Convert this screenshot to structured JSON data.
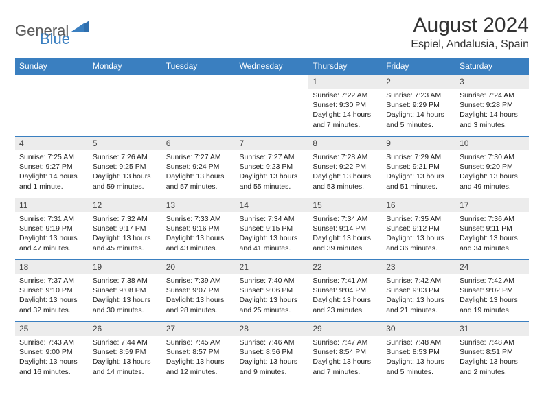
{
  "logo": {
    "general": "General",
    "blue": "Blue"
  },
  "title": "August 2024",
  "location": "Espiel, Andalusia, Spain",
  "weekdays": [
    "Sunday",
    "Monday",
    "Tuesday",
    "Wednesday",
    "Thursday",
    "Friday",
    "Saturday"
  ],
  "colors": {
    "header_bg": "#3a7fc0",
    "header_text": "#ffffff",
    "daynum_bg": "#ececec",
    "border": "#3a7fc0",
    "logo_gray": "#5b5b5b",
    "logo_blue": "#3a7fc0"
  },
  "weeks": [
    [
      {
        "day": "",
        "sunrise": "",
        "sunset": "",
        "daylight": ""
      },
      {
        "day": "",
        "sunrise": "",
        "sunset": "",
        "daylight": ""
      },
      {
        "day": "",
        "sunrise": "",
        "sunset": "",
        "daylight": ""
      },
      {
        "day": "",
        "sunrise": "",
        "sunset": "",
        "daylight": ""
      },
      {
        "day": "1",
        "sunrise": "Sunrise: 7:22 AM",
        "sunset": "Sunset: 9:30 PM",
        "daylight": "Daylight: 14 hours and 7 minutes."
      },
      {
        "day": "2",
        "sunrise": "Sunrise: 7:23 AM",
        "sunset": "Sunset: 9:29 PM",
        "daylight": "Daylight: 14 hours and 5 minutes."
      },
      {
        "day": "3",
        "sunrise": "Sunrise: 7:24 AM",
        "sunset": "Sunset: 9:28 PM",
        "daylight": "Daylight: 14 hours and 3 minutes."
      }
    ],
    [
      {
        "day": "4",
        "sunrise": "Sunrise: 7:25 AM",
        "sunset": "Sunset: 9:27 PM",
        "daylight": "Daylight: 14 hours and 1 minute."
      },
      {
        "day": "5",
        "sunrise": "Sunrise: 7:26 AM",
        "sunset": "Sunset: 9:25 PM",
        "daylight": "Daylight: 13 hours and 59 minutes."
      },
      {
        "day": "6",
        "sunrise": "Sunrise: 7:27 AM",
        "sunset": "Sunset: 9:24 PM",
        "daylight": "Daylight: 13 hours and 57 minutes."
      },
      {
        "day": "7",
        "sunrise": "Sunrise: 7:27 AM",
        "sunset": "Sunset: 9:23 PM",
        "daylight": "Daylight: 13 hours and 55 minutes."
      },
      {
        "day": "8",
        "sunrise": "Sunrise: 7:28 AM",
        "sunset": "Sunset: 9:22 PM",
        "daylight": "Daylight: 13 hours and 53 minutes."
      },
      {
        "day": "9",
        "sunrise": "Sunrise: 7:29 AM",
        "sunset": "Sunset: 9:21 PM",
        "daylight": "Daylight: 13 hours and 51 minutes."
      },
      {
        "day": "10",
        "sunrise": "Sunrise: 7:30 AM",
        "sunset": "Sunset: 9:20 PM",
        "daylight": "Daylight: 13 hours and 49 minutes."
      }
    ],
    [
      {
        "day": "11",
        "sunrise": "Sunrise: 7:31 AM",
        "sunset": "Sunset: 9:19 PM",
        "daylight": "Daylight: 13 hours and 47 minutes."
      },
      {
        "day": "12",
        "sunrise": "Sunrise: 7:32 AM",
        "sunset": "Sunset: 9:17 PM",
        "daylight": "Daylight: 13 hours and 45 minutes."
      },
      {
        "day": "13",
        "sunrise": "Sunrise: 7:33 AM",
        "sunset": "Sunset: 9:16 PM",
        "daylight": "Daylight: 13 hours and 43 minutes."
      },
      {
        "day": "14",
        "sunrise": "Sunrise: 7:34 AM",
        "sunset": "Sunset: 9:15 PM",
        "daylight": "Daylight: 13 hours and 41 minutes."
      },
      {
        "day": "15",
        "sunrise": "Sunrise: 7:34 AM",
        "sunset": "Sunset: 9:14 PM",
        "daylight": "Daylight: 13 hours and 39 minutes."
      },
      {
        "day": "16",
        "sunrise": "Sunrise: 7:35 AM",
        "sunset": "Sunset: 9:12 PM",
        "daylight": "Daylight: 13 hours and 36 minutes."
      },
      {
        "day": "17",
        "sunrise": "Sunrise: 7:36 AM",
        "sunset": "Sunset: 9:11 PM",
        "daylight": "Daylight: 13 hours and 34 minutes."
      }
    ],
    [
      {
        "day": "18",
        "sunrise": "Sunrise: 7:37 AM",
        "sunset": "Sunset: 9:10 PM",
        "daylight": "Daylight: 13 hours and 32 minutes."
      },
      {
        "day": "19",
        "sunrise": "Sunrise: 7:38 AM",
        "sunset": "Sunset: 9:08 PM",
        "daylight": "Daylight: 13 hours and 30 minutes."
      },
      {
        "day": "20",
        "sunrise": "Sunrise: 7:39 AM",
        "sunset": "Sunset: 9:07 PM",
        "daylight": "Daylight: 13 hours and 28 minutes."
      },
      {
        "day": "21",
        "sunrise": "Sunrise: 7:40 AM",
        "sunset": "Sunset: 9:06 PM",
        "daylight": "Daylight: 13 hours and 25 minutes."
      },
      {
        "day": "22",
        "sunrise": "Sunrise: 7:41 AM",
        "sunset": "Sunset: 9:04 PM",
        "daylight": "Daylight: 13 hours and 23 minutes."
      },
      {
        "day": "23",
        "sunrise": "Sunrise: 7:42 AM",
        "sunset": "Sunset: 9:03 PM",
        "daylight": "Daylight: 13 hours and 21 minutes."
      },
      {
        "day": "24",
        "sunrise": "Sunrise: 7:42 AM",
        "sunset": "Sunset: 9:02 PM",
        "daylight": "Daylight: 13 hours and 19 minutes."
      }
    ],
    [
      {
        "day": "25",
        "sunrise": "Sunrise: 7:43 AM",
        "sunset": "Sunset: 9:00 PM",
        "daylight": "Daylight: 13 hours and 16 minutes."
      },
      {
        "day": "26",
        "sunrise": "Sunrise: 7:44 AM",
        "sunset": "Sunset: 8:59 PM",
        "daylight": "Daylight: 13 hours and 14 minutes."
      },
      {
        "day": "27",
        "sunrise": "Sunrise: 7:45 AM",
        "sunset": "Sunset: 8:57 PM",
        "daylight": "Daylight: 13 hours and 12 minutes."
      },
      {
        "day": "28",
        "sunrise": "Sunrise: 7:46 AM",
        "sunset": "Sunset: 8:56 PM",
        "daylight": "Daylight: 13 hours and 9 minutes."
      },
      {
        "day": "29",
        "sunrise": "Sunrise: 7:47 AM",
        "sunset": "Sunset: 8:54 PM",
        "daylight": "Daylight: 13 hours and 7 minutes."
      },
      {
        "day": "30",
        "sunrise": "Sunrise: 7:48 AM",
        "sunset": "Sunset: 8:53 PM",
        "daylight": "Daylight: 13 hours and 5 minutes."
      },
      {
        "day": "31",
        "sunrise": "Sunrise: 7:48 AM",
        "sunset": "Sunset: 8:51 PM",
        "daylight": "Daylight: 13 hours and 2 minutes."
      }
    ]
  ]
}
